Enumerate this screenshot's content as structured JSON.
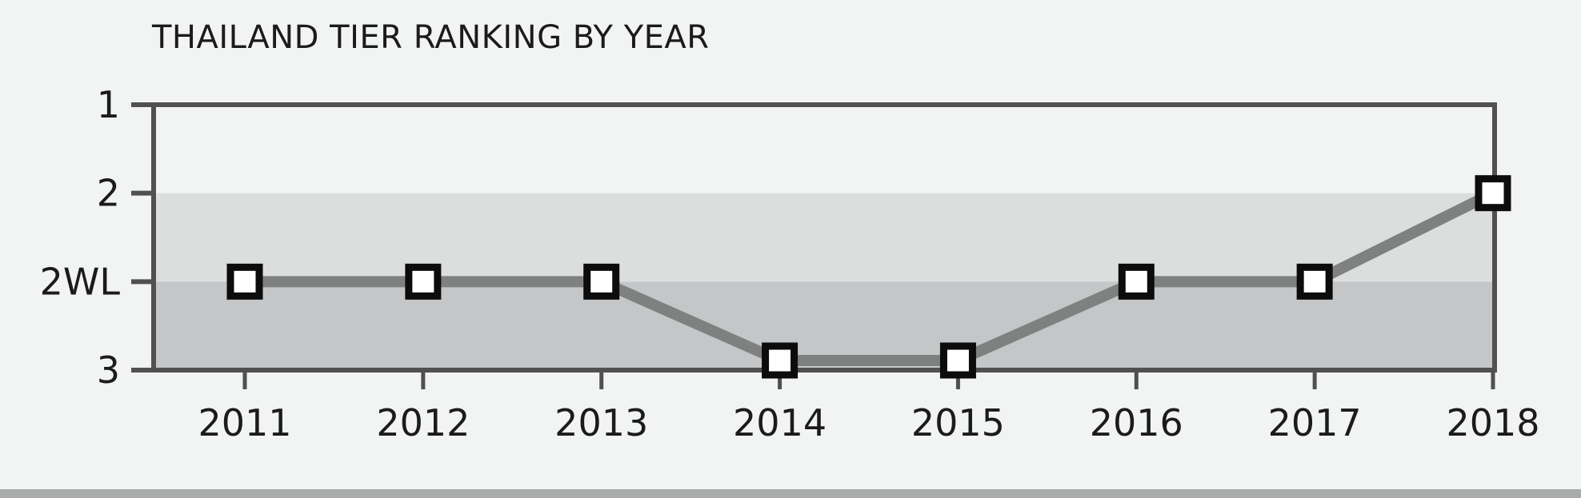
{
  "chart_data": {
    "type": "line",
    "title": "THAILAND TIER RANKING BY YEAR",
    "xlabel": "",
    "ylabel": "",
    "categories": [
      "2011",
      "2012",
      "2013",
      "2014",
      "2015",
      "2016",
      "2017",
      "2018"
    ],
    "y_ticks": [
      "1",
      "2",
      "2WL",
      "3"
    ],
    "ylim": [
      "1",
      "3"
    ],
    "y_order": "top-to-bottom",
    "series": [
      {
        "values": [
          "2WL",
          "2WL",
          "2WL",
          "3",
          "3",
          "2WL",
          "2WL",
          "2"
        ]
      }
    ],
    "grid": false,
    "legend": "none",
    "colors": {
      "background": "#f2f4f3",
      "plot_band_upper": "#f2f4f3",
      "plot_band_middle": "#dcdede",
      "plot_band_lower": "#c4c6c8",
      "axis": "#505050",
      "line": "#7f8181",
      "marker_fill": "#ffffff",
      "marker_stroke": "#0c0c0c",
      "bottom_rule": "#a8acab"
    }
  }
}
